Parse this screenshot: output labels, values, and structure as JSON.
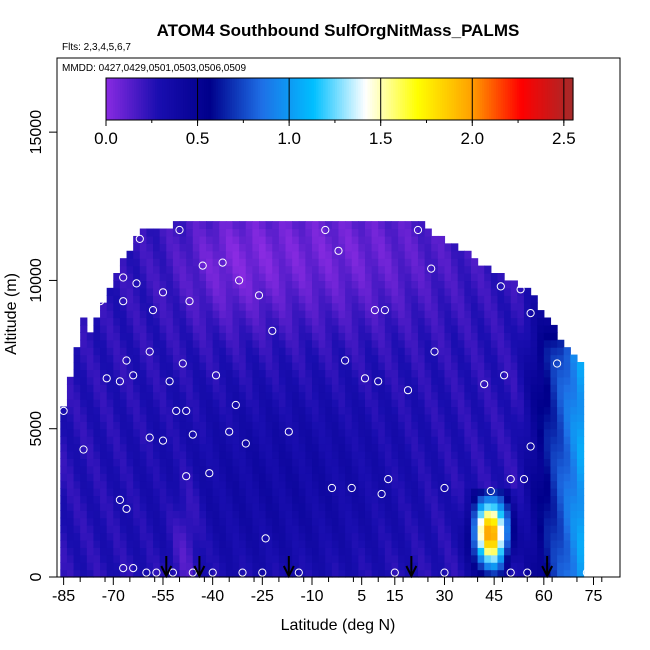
{
  "chart_data": {
    "type": "heatmap",
    "title": "ATOM4 Southbound SulfOrgNitMass_PALMS",
    "subtitle_flights": "Flts: 2,3,4,5,6,7",
    "subtitle_dates": "MMDD: 0427,0429,0501,0503,0506,0509",
    "xlabel": "Latitude (deg N)",
    "ylabel": "Altitude (m)",
    "xlim": [
      -87,
      83
    ],
    "ylim": [
      0,
      17500
    ],
    "x_tick_labels": [
      "-85",
      "-70",
      "-55",
      "-40",
      "-25",
      "-10",
      "5",
      "15",
      "30",
      "45",
      "60",
      "75"
    ],
    "y_tick_labels": [
      "0",
      "5000",
      "10000",
      "15000"
    ],
    "colorbar": {
      "range": [
        0,
        2.55
      ],
      "tick_labels": [
        "0.0",
        "0.5",
        "1.0",
        "1.5",
        "2.0",
        "2.5"
      ],
      "colors": [
        "#8a2be2",
        "#1a0eb0",
        "#00008b",
        "#1e6fe6",
        "#00bfff",
        "#ffffff",
        "#ffff00",
        "#ffa500",
        "#ff0000",
        "#a52a2a"
      ]
    },
    "arrows_latitude": [
      -54,
      -44,
      -17,
      20,
      61
    ],
    "sample_points": [
      {
        "lat": -85,
        "alt": 5600
      },
      {
        "lat": -79,
        "alt": 4300
      },
      {
        "lat": -74,
        "alt": 9300
      },
      {
        "lat": -72,
        "alt": 6700
      },
      {
        "lat": -68,
        "alt": 6600
      },
      {
        "lat": -67,
        "alt": 10100
      },
      {
        "lat": -67,
        "alt": 9300
      },
      {
        "lat": -66,
        "alt": 7300
      },
      {
        "lat": -64,
        "alt": 6800
      },
      {
        "lat": -63,
        "alt": 9900
      },
      {
        "lat": -62,
        "alt": 11400
      },
      {
        "lat": -68,
        "alt": 2600
      },
      {
        "lat": -66,
        "alt": 2300
      },
      {
        "lat": -59,
        "alt": 4700
      },
      {
        "lat": -59,
        "alt": 7600
      },
      {
        "lat": -58,
        "alt": 9000
      },
      {
        "lat": -55,
        "alt": 9600
      },
      {
        "lat": -55,
        "alt": 4600
      },
      {
        "lat": -53,
        "alt": 6600
      },
      {
        "lat": -51,
        "alt": 5600
      },
      {
        "lat": -50,
        "alt": 11700
      },
      {
        "lat": -49,
        "alt": 7200
      },
      {
        "lat": -48,
        "alt": 5600
      },
      {
        "lat": -48,
        "alt": 3400
      },
      {
        "lat": -47,
        "alt": 9300
      },
      {
        "lat": -46,
        "alt": 4800
      },
      {
        "lat": -43,
        "alt": 10500
      },
      {
        "lat": -41,
        "alt": 3500
      },
      {
        "lat": -39,
        "alt": 6800
      },
      {
        "lat": -37,
        "alt": 10600
      },
      {
        "lat": -35,
        "alt": 4900
      },
      {
        "lat": -33,
        "alt": 5800
      },
      {
        "lat": -32,
        "alt": 10000
      },
      {
        "lat": -30,
        "alt": 4500
      },
      {
        "lat": -26,
        "alt": 9500
      },
      {
        "lat": -24,
        "alt": 1300
      },
      {
        "lat": -22,
        "alt": 8300
      },
      {
        "lat": -17,
        "alt": 4900
      },
      {
        "lat": -6,
        "alt": 11700
      },
      {
        "lat": -4,
        "alt": 3000
      },
      {
        "lat": -2,
        "alt": 11000
      },
      {
        "lat": 0,
        "alt": 7300
      },
      {
        "lat": 2,
        "alt": 3000
      },
      {
        "lat": 6,
        "alt": 6700
      },
      {
        "lat": 9,
        "alt": 9000
      },
      {
        "lat": 10,
        "alt": 6600
      },
      {
        "lat": 12,
        "alt": 9000
      },
      {
        "lat": 11,
        "alt": 2800
      },
      {
        "lat": 13,
        "alt": 3300
      },
      {
        "lat": 19,
        "alt": 6300
      },
      {
        "lat": 22,
        "alt": 11700
      },
      {
        "lat": 26,
        "alt": 10400
      },
      {
        "lat": 27,
        "alt": 7600
      },
      {
        "lat": 30,
        "alt": 3000
      },
      {
        "lat": 42,
        "alt": 6500
      },
      {
        "lat": 44,
        "alt": 2900
      },
      {
        "lat": 48,
        "alt": 6800
      },
      {
        "lat": 47,
        "alt": 9800
      },
      {
        "lat": 50,
        "alt": 3300
      },
      {
        "lat": 53,
        "alt": 9700
      },
      {
        "lat": 54,
        "alt": 3300
      },
      {
        "lat": 56,
        "alt": 4400
      },
      {
        "lat": 56,
        "alt": 8900
      },
      {
        "lat": 64,
        "alt": 7200
      },
      {
        "lat": -67,
        "alt": 300
      },
      {
        "lat": -64,
        "alt": 300
      },
      {
        "lat": -60,
        "alt": 150
      },
      {
        "lat": -57,
        "alt": 150
      },
      {
        "lat": -52,
        "alt": 150
      },
      {
        "lat": -46,
        "alt": 150
      },
      {
        "lat": -40,
        "alt": 150
      },
      {
        "lat": -31,
        "alt": 150
      },
      {
        "lat": -25,
        "alt": 150
      },
      {
        "lat": -14,
        "alt": 150
      },
      {
        "lat": 15,
        "alt": 150
      },
      {
        "lat": 30,
        "alt": 150
      },
      {
        "lat": 50,
        "alt": 150
      },
      {
        "lat": 55,
        "alt": 150
      },
      {
        "lat": 73,
        "alt": 150
      }
    ]
  }
}
